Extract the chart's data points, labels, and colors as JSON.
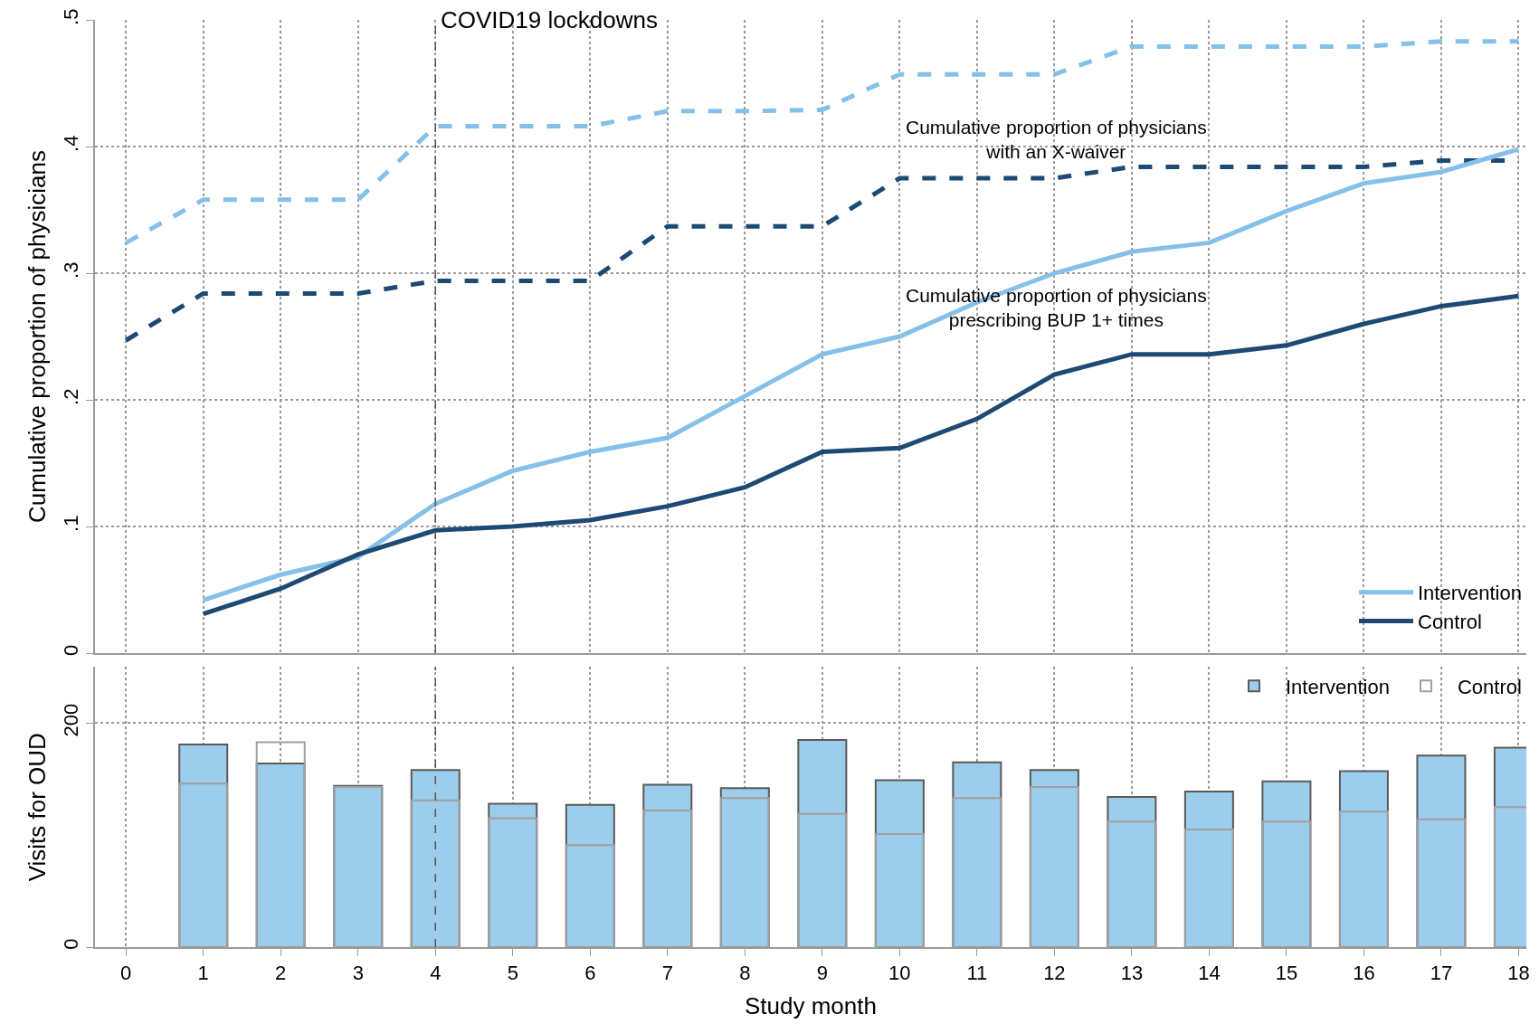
{
  "chart_data": [
    {
      "type": "line",
      "ylabel": "Cumulative proportion of physicians",
      "x": [
        0,
        1,
        2,
        3,
        4,
        5,
        6,
        7,
        8,
        9,
        10,
        11,
        12,
        13,
        14,
        15,
        16,
        17,
        18
      ],
      "series": [
        {
          "color": "#85c0e9",
          "line_style": "dashed",
          "values": [
            0.324,
            0.358,
            0.358,
            0.358,
            0.416,
            0.416,
            0.416,
            0.428,
            0.428,
            0.429,
            0.457,
            0.457,
            0.457,
            0.479,
            0.479,
            0.479,
            0.479,
            0.483,
            0.483
          ]
        },
        {
          "color": "#1d4a73",
          "line_style": "dashed",
          "values": [
            0.247,
            0.284,
            0.284,
            0.284,
            0.294,
            0.294,
            0.294,
            0.337,
            0.337,
            0.337,
            0.375,
            0.375,
            0.375,
            0.384,
            0.384,
            0.384,
            0.384,
            0.389,
            0.389
          ]
        },
        {
          "name": "Intervention",
          "color": "#85c0e9",
          "line_style": "solid",
          "values": [
            null,
            0.042,
            0.062,
            0.076,
            0.118,
            0.144,
            0.159,
            0.17,
            0.203,
            0.236,
            0.25,
            0.277,
            0.3,
            0.317,
            0.324,
            0.349,
            0.371,
            0.38,
            0.398
          ]
        },
        {
          "name": "Control",
          "color": "#1d4a73",
          "line_style": "solid",
          "values": [
            null,
            0.031,
            0.051,
            0.078,
            0.097,
            0.1,
            0.105,
            0.116,
            0.131,
            0.159,
            0.162,
            0.185,
            0.22,
            0.236,
            0.236,
            0.243,
            0.26,
            0.274,
            0.282
          ]
        }
      ],
      "xlim": [
        -0.4,
        18.1
      ],
      "xticks": [
        {
          "value": 0,
          "label": null
        },
        {
          "value": 1,
          "label": null
        },
        {
          "value": 2,
          "label": null
        },
        {
          "value": 3,
          "label": null
        },
        {
          "value": 4,
          "label": null
        },
        {
          "value": 5,
          "label": null
        },
        {
          "value": 6,
          "label": null
        },
        {
          "value": 7,
          "label": null
        },
        {
          "value": 8,
          "label": null
        },
        {
          "value": 9,
          "label": null
        },
        {
          "value": 10,
          "label": null
        },
        {
          "value": 11,
          "label": null
        },
        {
          "value": 12,
          "label": null
        },
        {
          "value": 13,
          "label": null
        },
        {
          "value": 14,
          "label": null
        },
        {
          "value": 15,
          "label": null
        },
        {
          "value": 16,
          "label": null
        },
        {
          "value": 17,
          "label": null
        },
        {
          "value": 18,
          "label": null
        }
      ],
      "ylim": [
        0,
        0.5
      ],
      "yticks": [
        0,
        {
          "value": 0.1,
          "label": ".1"
        },
        {
          "value": 0.2,
          "label": ".2"
        },
        {
          "value": 0.3,
          "label": ".3"
        },
        {
          "value": 0.4,
          "label": ".4"
        },
        {
          "value": 0.5,
          "label": ".5"
        }
      ],
      "tick_labels": "y",
      "ref_lines": [
        {
          "axis": "x",
          "value": 4,
          "label": "COVID19 lockdowns",
          "color": "#555555",
          "line_style": "dashed"
        }
      ],
      "annotations": [
        "Cumulative proportion of physicians\nwith an X-waiver",
        "Cumulative proportion of physicians\nprescribing BUP 1+ times"
      ],
      "grid": true,
      "legend": "bottom right",
      "marker": "none"
    },
    {
      "type": "bar",
      "xlabel": "Study month",
      "ylabel": "Visits for OUD",
      "x": [
        1,
        2,
        3,
        4,
        5,
        6,
        7,
        8,
        9,
        10,
        11,
        12,
        13,
        14,
        15,
        16,
        17,
        18
      ],
      "series": [
        {
          "name": "Intervention",
          "color": "#9ccdec",
          "values": [
            181,
            164,
            144,
            158,
            128,
            127,
            145,
            142,
            185,
            149,
            165,
            158,
            134,
            139,
            148,
            157,
            171,
            178
          ]
        },
        {
          "name": "Control",
          "color": "#a0a0a0",
          "values": [
            146,
            183,
            143,
            131,
            115,
            91,
            122,
            133,
            119,
            101,
            133,
            143,
            112,
            105,
            112,
            121,
            114,
            125
          ]
        }
      ],
      "xlim": [
        -0.4,
        18.1
      ],
      "xticks": [
        0,
        1,
        2,
        3,
        4,
        5,
        6,
        7,
        8,
        9,
        10,
        11,
        12,
        13,
        14,
        15,
        16,
        17,
        18
      ],
      "ylim": [
        0,
        250
      ],
      "yticks": [
        0,
        200
      ],
      "ref_lines": [
        {
          "axis": "x",
          "value": 4,
          "color": "#555555",
          "line_style": "dashed"
        }
      ],
      "grid": true,
      "legend": "top right"
    }
  ]
}
